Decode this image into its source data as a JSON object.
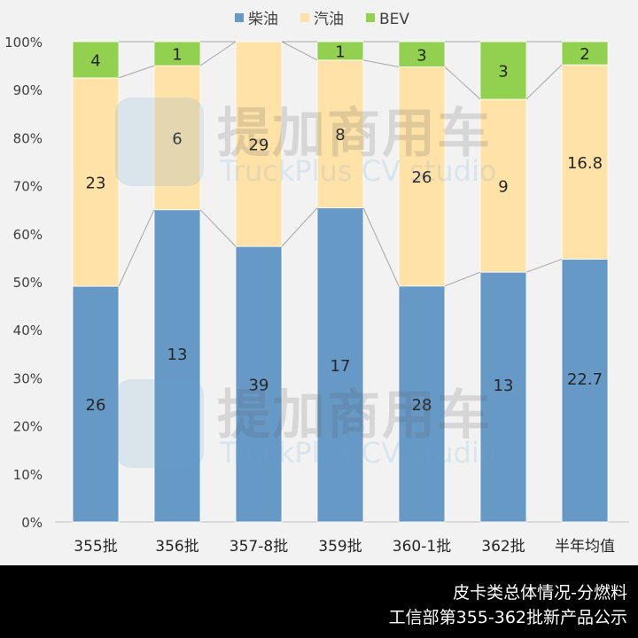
{
  "chart_data": {
    "type": "bar",
    "stacked": "percent",
    "title": "皮卡类总体情况-分燃料",
    "subtitle": "工信部第355-362批新产品公示",
    "categories": [
      "355批",
      "356批",
      "357-8批",
      "359批",
      "360-1批",
      "362批",
      "半年均值"
    ],
    "series": [
      {
        "name": "柴油",
        "color": "#6699c6",
        "values": [
          26,
          13,
          39,
          17,
          28,
          13,
          22.7
        ]
      },
      {
        "name": "汽油",
        "color": "#ffe2a8",
        "values": [
          23,
          6,
          29,
          8,
          26,
          9,
          16.8
        ]
      },
      {
        "name": "BEV",
        "color": "#92d050",
        "values": [
          4,
          1,
          0,
          1,
          3,
          3,
          2
        ]
      }
    ],
    "yticks": [
      "0%",
      "10%",
      "20%",
      "30%",
      "40%",
      "50%",
      "60%",
      "70%",
      "80%",
      "90%",
      "100%"
    ],
    "ylim": [
      0,
      100
    ],
    "legend": "top",
    "series_lines": true
  },
  "footer": {
    "line1": "皮卡类总体情况-分燃料",
    "line2": "工信部第355-362批新产品公示"
  },
  "watermark": {
    "cn": "提加商用车",
    "en": "TruckPlus CV studio"
  }
}
